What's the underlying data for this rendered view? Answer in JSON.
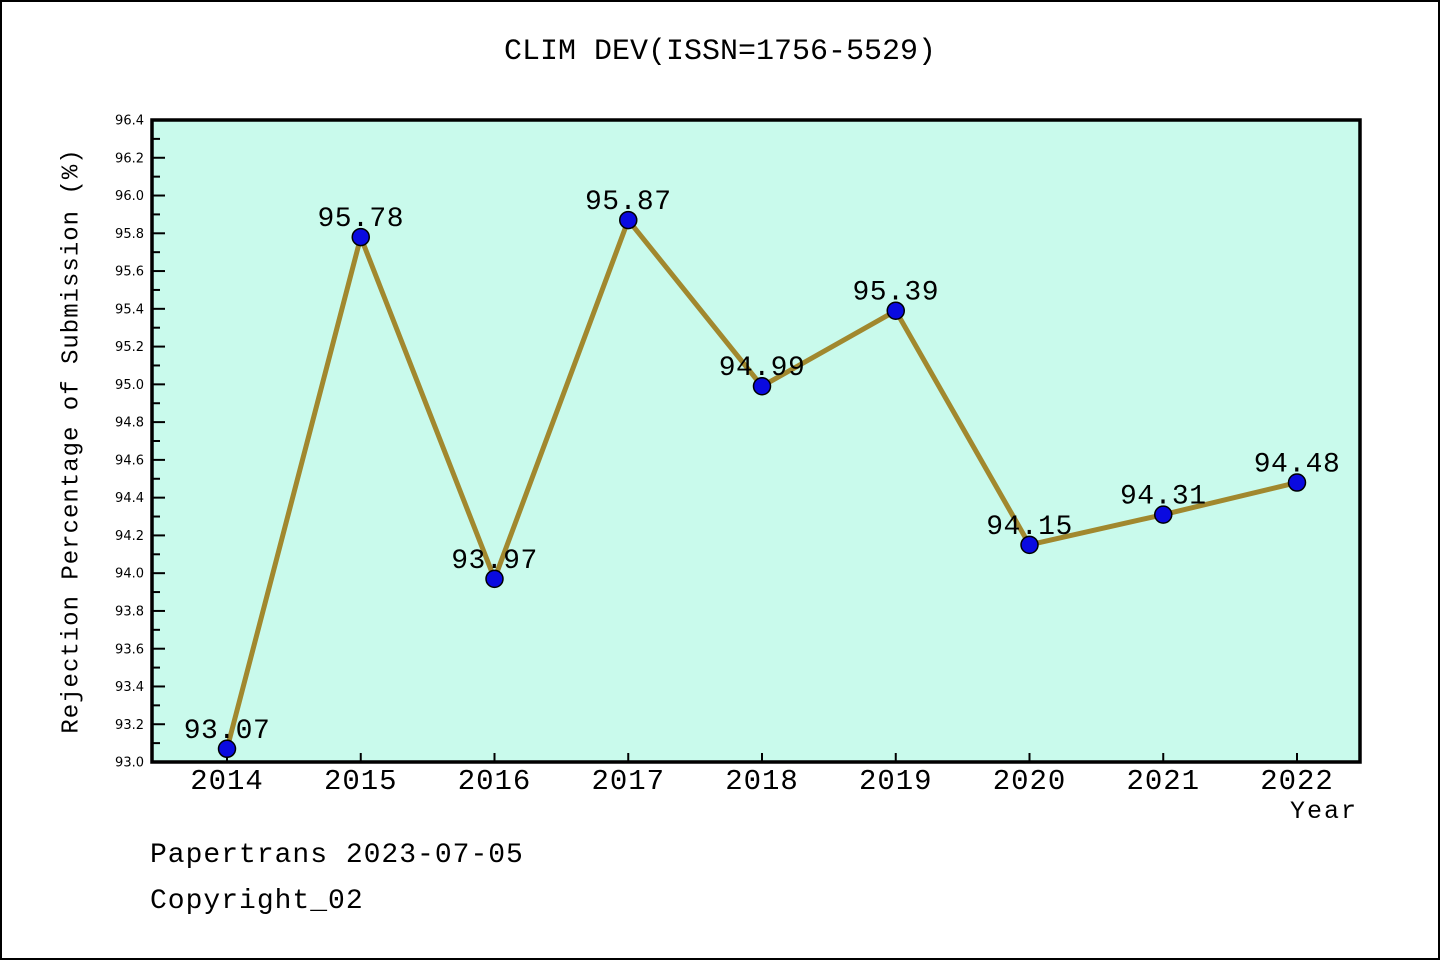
{
  "footer": {
    "line1": "Papertrans 2023-07-05",
    "line2": "Copyright_02"
  },
  "chart_data": {
    "type": "line",
    "title": "CLIM DEV(ISSN=1756-5529)",
    "xlabel": "Year",
    "ylabel": "Rejection Percentage of Submission (%)",
    "x": [
      2014,
      2015,
      2016,
      2017,
      2018,
      2019,
      2020,
      2021,
      2022
    ],
    "values": [
      93.07,
      95.78,
      93.97,
      95.87,
      94.99,
      95.39,
      94.15,
      94.31,
      94.48
    ],
    "data_labels": [
      "93.07",
      "95.78",
      "93.97",
      "95.87",
      "94.99",
      "95.39",
      "94.15",
      "94.31",
      "94.48"
    ],
    "ylim": [
      93.0,
      96.4
    ],
    "ytick_major_step": 0.2,
    "ytick_minor_step": 0.1,
    "grid": false,
    "legend": "none",
    "colors": {
      "plot_bg": "#c9faec",
      "line": "#a1882e",
      "marker": "#0a0ae0",
      "marker_edge": "#000000",
      "axis": "#000000",
      "text": "#000000"
    }
  }
}
